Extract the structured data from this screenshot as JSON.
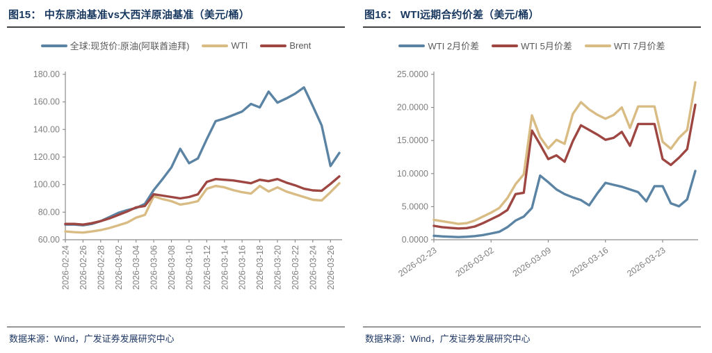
{
  "source_note": "数据来源：Wind，广发证券发展研究中心",
  "colors": {
    "title_navy": "#17375E",
    "source_navy": "#1F3864",
    "axis_gray": "#8C8C8C",
    "tick_label_gray": "#7F7F7F",
    "legend_text_gray": "#595959",
    "steel_blue": "#5B84A4",
    "tan_gold": "#D9BC84",
    "brick_red": "#9E4742"
  },
  "chart_data": [
    {
      "type": "line",
      "title": "图15： 中东原油基准vs大西洋原油基准（美元/桶）",
      "ylabel": "",
      "xlabel": "",
      "ylim": [
        60,
        180
      ],
      "grid": false,
      "legend_position": "top",
      "yticks": [
        [
          60,
          "60.00"
        ],
        [
          80,
          "80.00"
        ],
        [
          100,
          "100.00"
        ],
        [
          120,
          "120.00"
        ],
        [
          140,
          "140.00"
        ],
        [
          160,
          "160.00"
        ],
        [
          180,
          "180.00"
        ]
      ],
      "x": [
        "2026-02-24",
        "2026-02-25",
        "2026-02-26",
        "2026-02-27",
        "2026-02-28",
        "2026-03-01",
        "2026-03-02",
        "2026-03-03",
        "2026-03-04",
        "2026-03-05",
        "2026-03-06",
        "2026-03-07",
        "2026-03-08",
        "2026-03-09",
        "2026-03-10",
        "2026-03-11",
        "2026-03-12",
        "2026-03-13",
        "2026-03-14",
        "2026-03-15",
        "2026-03-16",
        "2026-03-17",
        "2026-03-18",
        "2026-03-19",
        "2026-03-20",
        "2026-03-21",
        "2026-03-22",
        "2026-03-23",
        "2026-03-24",
        "2026-03-25",
        "2026-03-26",
        "2026-03-27"
      ],
      "x_tick_indices": [
        0,
        2,
        4,
        6,
        8,
        10,
        12,
        14,
        16,
        18,
        20,
        22,
        24,
        26,
        28,
        30
      ],
      "x_label_style": "vertical",
      "series": [
        {
          "name": "全球:现货价:原油(阿联酋迪拜)",
          "color": "#5B84A4",
          "values": [
            71,
            71,
            70.5,
            71.5,
            73.5,
            76.5,
            79.5,
            81.5,
            83,
            86,
            96,
            104,
            112.5,
            126,
            115.5,
            119,
            133,
            146,
            148,
            150.5,
            153,
            158.5,
            156,
            167.5,
            159.5,
            162.5,
            166,
            170.5,
            157,
            143,
            113.5,
            123
          ]
        },
        {
          "name": "WTI",
          "color": "#D9BC84",
          "values": [
            66,
            65.5,
            65.2,
            66,
            67,
            68.5,
            70.5,
            72.5,
            76,
            78,
            91.5,
            89.5,
            88,
            85.5,
            86.5,
            88,
            97,
            99,
            98,
            96,
            94.5,
            93.5,
            99,
            95,
            98,
            95,
            93,
            91,
            89,
            88.5,
            94.5,
            101
          ]
        },
        {
          "name": "Brent",
          "color": "#9E4742",
          "values": [
            71.5,
            71.5,
            71,
            72,
            73.5,
            75.5,
            78,
            80.5,
            83.5,
            84.5,
            93,
            92,
            91,
            90,
            91,
            93,
            102,
            104,
            103.5,
            103,
            102,
            101,
            103.5,
            102.5,
            104,
            101.5,
            99.5,
            97,
            95.8,
            95.5,
            100.5,
            106
          ]
        }
      ]
    },
    {
      "type": "line",
      "title": "图16： WTI远期合约价差（美元/桶）",
      "ylabel": "",
      "xlabel": "",
      "ylim": [
        0,
        25
      ],
      "grid": false,
      "legend_position": "top",
      "yticks": [
        [
          0,
          "0.0000"
        ],
        [
          5,
          "5.0000"
        ],
        [
          10,
          "10.0000"
        ],
        [
          15,
          "15.0000"
        ],
        [
          20,
          "20.0000"
        ],
        [
          25,
          "25.0000"
        ]
      ],
      "x": [
        "2026-02-23",
        "2026-02-24",
        "2026-02-25",
        "2026-02-26",
        "2026-02-27",
        "2026-02-28",
        "2026-03-01",
        "2026-03-02",
        "2026-03-03",
        "2026-03-04",
        "2026-03-05",
        "2026-03-06",
        "2026-03-07",
        "2026-03-08",
        "2026-03-09",
        "2026-03-10",
        "2026-03-11",
        "2026-03-12",
        "2026-03-13",
        "2026-03-14",
        "2026-03-15",
        "2026-03-16",
        "2026-03-17",
        "2026-03-18",
        "2026-03-19",
        "2026-03-20",
        "2026-03-21",
        "2026-03-22",
        "2026-03-23",
        "2026-03-24",
        "2026-03-25",
        "2026-03-26",
        "2026-03-27"
      ],
      "x_tick_indices": [
        0,
        7,
        14,
        21,
        28
      ],
      "x_label_style": "diagonal",
      "series": [
        {
          "name": "WTI 2月价差",
          "color": "#5B84A4",
          "values": [
            0.6,
            0.5,
            0.45,
            0.4,
            0.45,
            0.55,
            0.7,
            0.95,
            1.2,
            1.9,
            2.9,
            3.5,
            4.8,
            9.7,
            8.7,
            7.6,
            6.9,
            6.4,
            6.0,
            5.2,
            7.0,
            8.6,
            8.3,
            8.0,
            7.6,
            7.2,
            5.8,
            8.1,
            8.1,
            5.5,
            5.05,
            6.1,
            10.4
          ]
        },
        {
          "name": "WTI 5月价差",
          "color": "#9E4742",
          "values": [
            2.1,
            1.9,
            1.8,
            1.7,
            1.75,
            2.0,
            2.5,
            3.1,
            3.7,
            4.5,
            6.9,
            7.1,
            16.5,
            14.4,
            12.2,
            12.75,
            11.8,
            14.9,
            17.3,
            16.6,
            15.9,
            15.1,
            15.4,
            16.3,
            14.2,
            17.5,
            17.5,
            17.5,
            12.2,
            11.3,
            12.4,
            13.7,
            20.4
          ]
        },
        {
          "name": "WTI 7月价差",
          "color": "#D9BC84",
          "values": [
            3.0,
            2.8,
            2.6,
            2.4,
            2.5,
            2.9,
            3.5,
            4.1,
            4.8,
            6.3,
            8.4,
            9.9,
            18.8,
            15.5,
            13.8,
            15.1,
            14.5,
            19.0,
            20.8,
            19.7,
            18.9,
            18.3,
            18.85,
            20.0,
            16.9,
            20.15,
            20.15,
            20.15,
            14.8,
            13.75,
            15.4,
            16.6,
            23.8
          ]
        }
      ]
    }
  ]
}
